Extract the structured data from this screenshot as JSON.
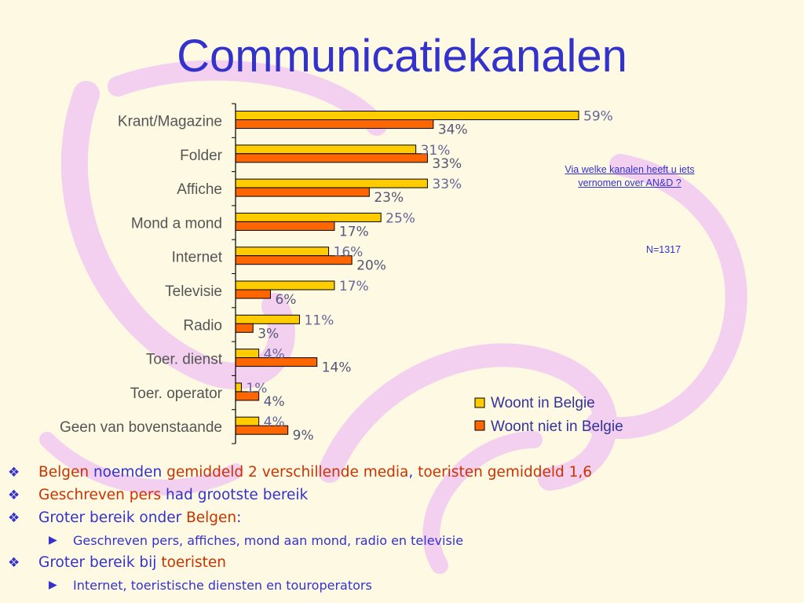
{
  "slide": {
    "title": "Communicatiekanalen",
    "question": "Via welke kanalen heeft u iets vernomen over AN&D ?",
    "sample_size": "N=1317"
  },
  "colors": {
    "background": "#fdf9e3",
    "title": "#3333cc",
    "series1": "#ffcc00",
    "series2": "#ff6600",
    "highlight": "#cc3300"
  },
  "chart_data": {
    "type": "bar",
    "orientation": "horizontal",
    "categories": [
      "Krant/Magazine",
      "Folder",
      "Affiche",
      "Mond a mond",
      "Internet",
      "Televisie",
      "Radio",
      "Toer. dienst",
      "Toer. operator",
      "Geen van bovenstaande"
    ],
    "series": [
      {
        "name": "Woont in Belgie",
        "values": [
          59,
          31,
          33,
          25,
          16,
          17,
          11,
          4,
          1,
          4
        ],
        "labels": [
          "59%",
          "31%",
          "33%",
          "25%",
          "16%",
          "17%",
          "11%",
          "4%",
          "1%",
          "4%"
        ],
        "color": "#ffcc00"
      },
      {
        "name": "Woont niet in Belgie",
        "values": [
          34,
          33,
          23,
          17,
          20,
          6,
          3,
          14,
          4,
          9
        ],
        "labels": [
          "34%",
          "33%",
          "23%",
          "17%",
          "20%",
          "6%",
          "3%",
          "14%",
          "4%",
          "9%"
        ],
        "color": "#ff6600"
      }
    ],
    "xlim": [
      0,
      60
    ],
    "grid": false,
    "legend_position": "bottom-right"
  },
  "bullets": [
    {
      "level": 1,
      "parts": [
        {
          "text": "Belgen",
          "color": "red"
        },
        {
          "text": " noemden ",
          "color": "blue"
        },
        {
          "text": "gemiddeld 2 verschillende media",
          "color": "red"
        },
        {
          "text": ", ",
          "color": "blue"
        },
        {
          "text": "toeristen gemiddeld 1,6",
          "color": "red"
        }
      ]
    },
    {
      "level": 1,
      "parts": [
        {
          "text": "Geschreven pers",
          "color": "red"
        },
        {
          "text": " had grootste bereik",
          "color": "blue"
        }
      ]
    },
    {
      "level": 1,
      "parts": [
        {
          "text": "Groter bereik onder ",
          "color": "blue"
        },
        {
          "text": "Belgen",
          "color": "red"
        },
        {
          "text": ":",
          "color": "blue"
        }
      ]
    },
    {
      "level": 2,
      "parts": [
        {
          "text": "Geschreven pers, affiches, mond aan mond, radio en televisie",
          "color": "blue"
        }
      ]
    },
    {
      "level": 1,
      "parts": [
        {
          "text": "Groter bereik bij ",
          "color": "blue"
        },
        {
          "text": "toeristen",
          "color": "red"
        }
      ]
    },
    {
      "level": 2,
      "parts": [
        {
          "text": "Internet, toeristische diensten en touroperators",
          "color": "blue"
        }
      ]
    }
  ]
}
